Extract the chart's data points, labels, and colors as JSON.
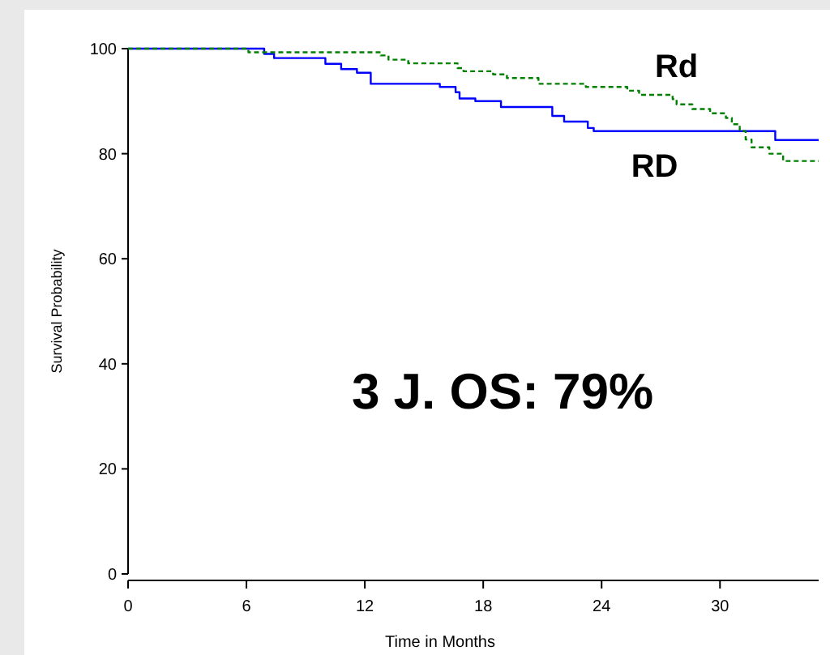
{
  "chart_data": {
    "type": "step",
    "xlabel": "Time in Months",
    "ylabel": "Survival Probability",
    "xlim": [
      0,
      35
    ],
    "xticks": [
      0,
      6,
      12,
      18,
      24,
      30
    ],
    "ylim": [
      0,
      100
    ],
    "yticks": [
      0,
      20,
      40,
      60,
      80,
      100
    ],
    "grid": false,
    "annotations": [
      "3 J. OS: 79%"
    ],
    "series": [
      {
        "name": "RD",
        "color": "#0000ff",
        "line_style": "solid",
        "x": [
          0,
          6.9,
          7.4,
          10,
          10.8,
          11.6,
          12.3,
          15.8,
          16.6,
          16.8,
          17.6,
          18.9,
          21.5,
          22.1,
          23.3,
          23.6,
          32.8,
          35
        ],
        "values": [
          100,
          99,
          98.2,
          97.1,
          96.1,
          95.4,
          93.3,
          92.7,
          91.7,
          90.5,
          90,
          88.9,
          87.2,
          86.1,
          84.9,
          84.3,
          82.6,
          82.6
        ]
      },
      {
        "name": "Rd",
        "color": "#008000",
        "line_style": "dashed",
        "x": [
          0,
          6.1,
          12.8,
          13.2,
          14.2,
          16.7,
          17,
          18.5,
          19.2,
          20.8,
          23.2,
          25.3,
          25.9,
          27.6,
          27.8,
          28.6,
          29.5,
          30.3,
          30.6,
          31,
          31.3,
          31.6,
          32.5,
          33.2,
          35
        ],
        "values": [
          100,
          99.3,
          98.7,
          97.9,
          97.2,
          96.3,
          95.7,
          95.1,
          94.4,
          93.3,
          92.7,
          92,
          91.2,
          90.4,
          89.4,
          88.5,
          87.7,
          86.8,
          85.6,
          84.3,
          82.7,
          81.2,
          80,
          78.6,
          78.6
        ]
      }
    ]
  }
}
